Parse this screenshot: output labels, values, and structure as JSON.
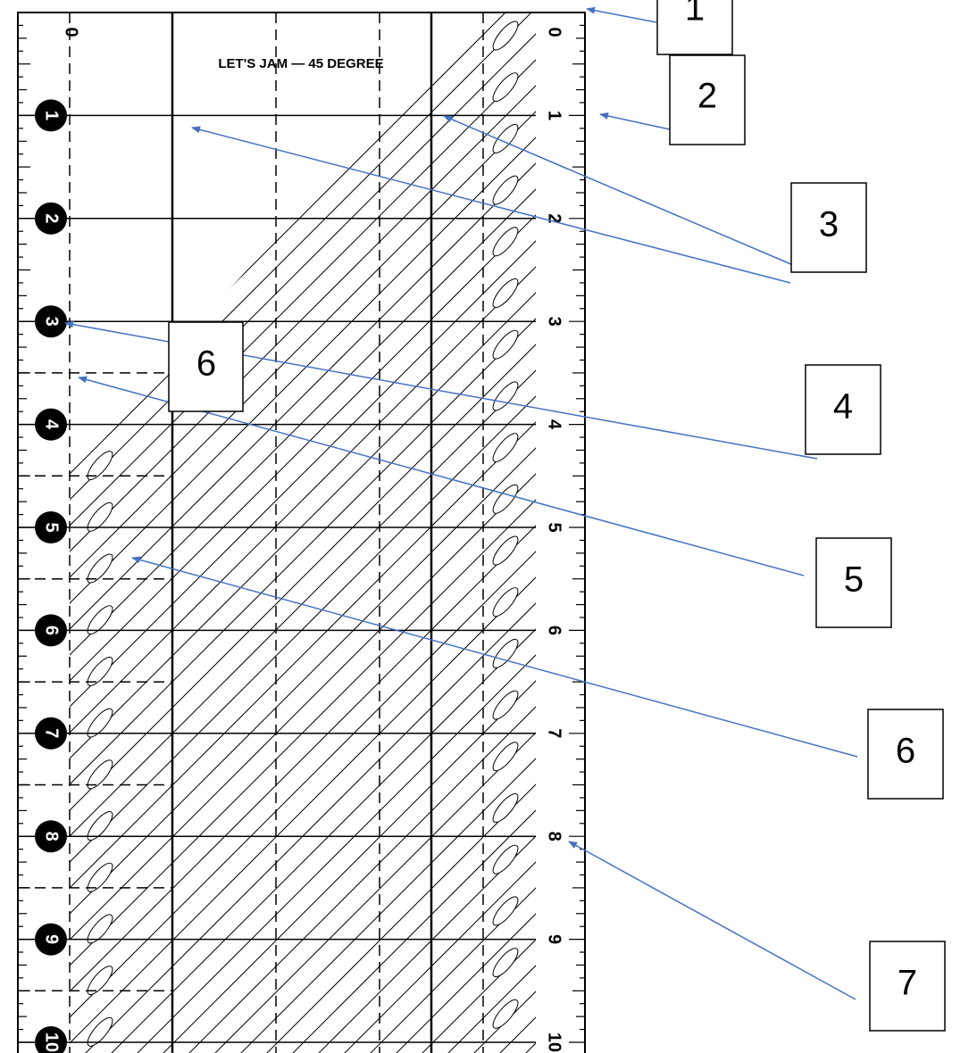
{
  "ruler": {
    "title": "LET'S JAM — 45 DEGREE",
    "left_numbers": [
      "0",
      "1",
      "2",
      "3",
      "4",
      "5",
      "6",
      "7",
      "8",
      "9",
      "10"
    ],
    "right_numbers": [
      "0",
      "1",
      "2",
      "3",
      "4",
      "5",
      "6",
      "7",
      "8",
      "9",
      "10"
    ]
  },
  "callouts": [
    {
      "label": "1"
    },
    {
      "label": "2"
    },
    {
      "label": "3"
    },
    {
      "label": "4"
    },
    {
      "label": "5"
    },
    {
      "label": "6"
    },
    {
      "label": "6"
    },
    {
      "label": "7"
    }
  ]
}
